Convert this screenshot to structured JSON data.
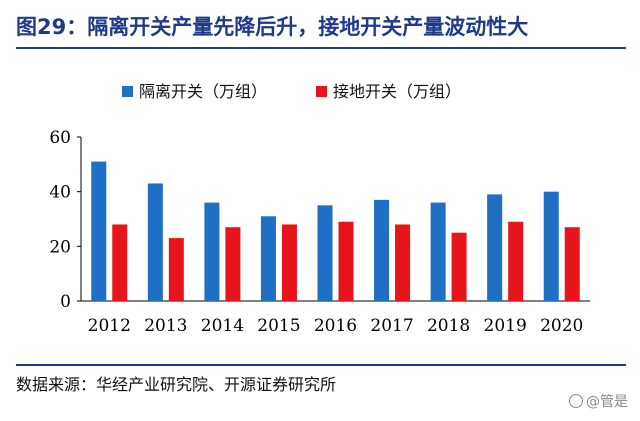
{
  "header": {
    "title": "图29：隔离开关产量先降后升，接地开关产量波动性大"
  },
  "footer": {
    "source": "数据来源：华经产业研究院、开源证券研究所"
  },
  "watermark": {
    "text": "@管是"
  },
  "chart_data": {
    "type": "bar",
    "categories": [
      "2012",
      "2013",
      "2014",
      "2015",
      "2016",
      "2017",
      "2018",
      "2019",
      "2020"
    ],
    "series": [
      {
        "name": "隔离开关（万组）",
        "values": [
          51,
          43,
          36,
          31,
          35,
          37,
          36,
          39,
          40
        ],
        "color": "#1f6fc4"
      },
      {
        "name": "接地开关（万组）",
        "values": [
          28,
          23,
          27,
          28,
          29,
          28,
          25,
          29,
          27
        ],
        "color": "#e8141b"
      }
    ],
    "ylim": [
      0,
      60
    ],
    "yticks": [
      0,
      20,
      40,
      60
    ],
    "grid": false,
    "legend": "top"
  }
}
